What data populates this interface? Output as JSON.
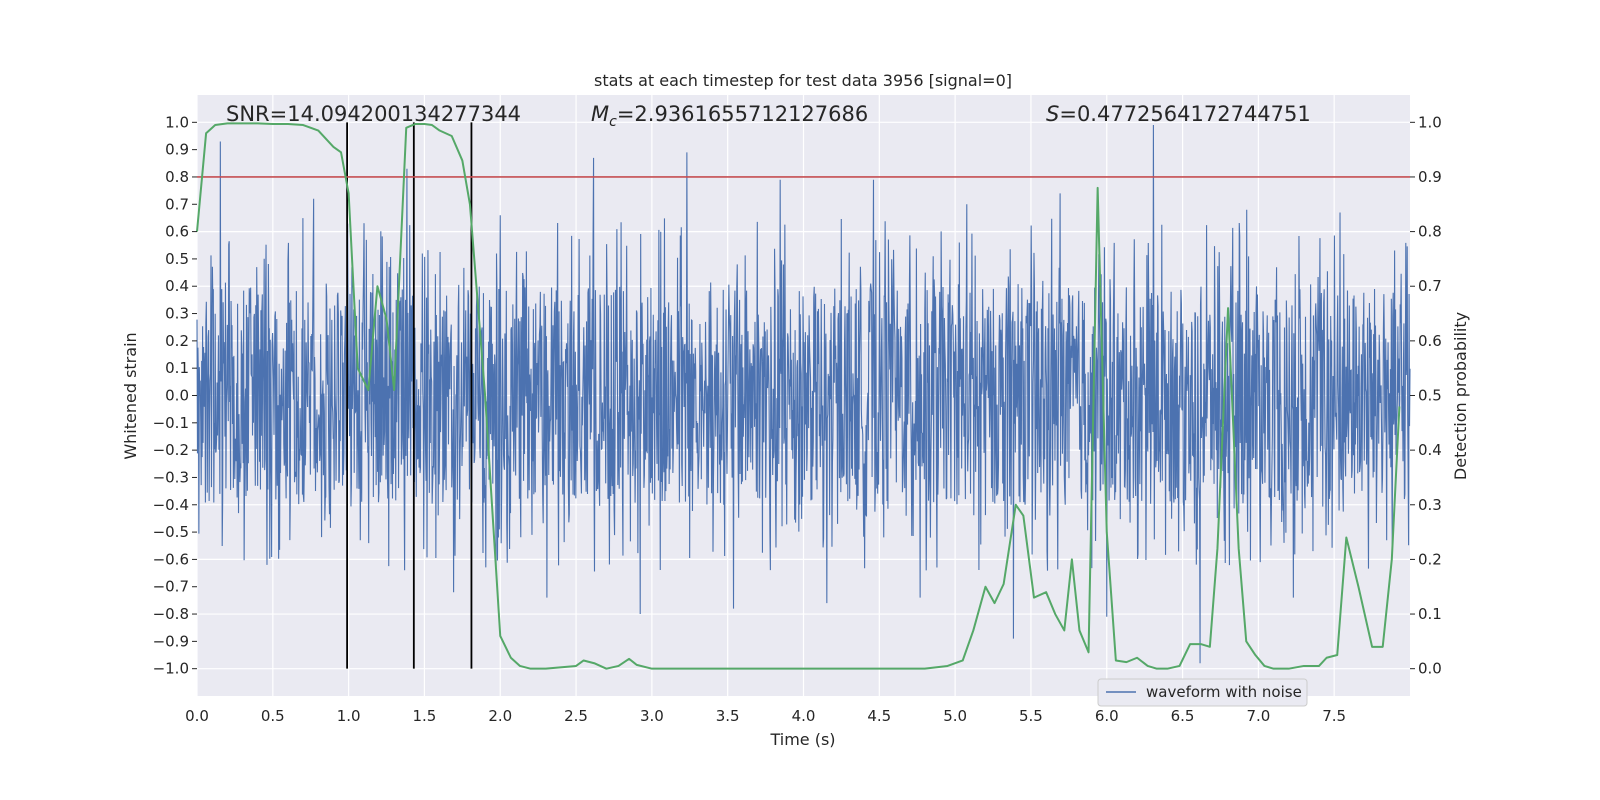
{
  "chart_data": {
    "type": "line",
    "title": "stats at each timestep for test data 3956 [signal=0]",
    "xlabel": "Time (s)",
    "ylabel_left": "Whitened strain",
    "ylabel_right": "Detection probability",
    "xlim": [
      0.0,
      8.0
    ],
    "ylim_left": [
      -1.1,
      1.1
    ],
    "ylim_right": [
      -0.05,
      1.05
    ],
    "x_ticks": [
      "0.0",
      "0.5",
      "1.0",
      "1.5",
      "2.0",
      "2.5",
      "3.0",
      "3.5",
      "4.0",
      "4.5",
      "5.0",
      "5.5",
      "6.0",
      "6.5",
      "7.0",
      "7.5"
    ],
    "y_ticks_left": [
      "1.0",
      "0.9",
      "0.8",
      "0.7",
      "0.6",
      "0.5",
      "0.4",
      "0.3",
      "0.2",
      "0.1",
      "0.0",
      "−0.1",
      "−0.2",
      "−0.3",
      "−0.4",
      "−0.5",
      "−0.6",
      "−0.7",
      "−0.8",
      "−0.9",
      "−1.0"
    ],
    "y_ticks_right": [
      "1.0",
      "0.9",
      "0.8",
      "0.7",
      "0.6",
      "0.5",
      "0.4",
      "0.3",
      "0.2",
      "0.1",
      "0.0"
    ],
    "grid": true,
    "legend_position": "lower-right",
    "annotations": {
      "snr_text": "SNR=14.094200134277344",
      "mc_symbol": "M",
      "mc_subscript": "c",
      "mc_value": "=2.9361655712127686",
      "s_symbol": "S",
      "s_value": "=0.4772564172744751"
    },
    "threshold": {
      "y": 0.9,
      "axis": "right",
      "color": "#c44e52"
    },
    "vertical_lines": [
      0.99,
      1.43,
      1.81
    ],
    "series": [
      {
        "name": "waveform with noise",
        "axis": "left",
        "kind": "noise",
        "color": "#4c72b0",
        "core_band": [
          -0.4,
          0.4
        ],
        "extremes": [
          0.93,
          -0.62,
          0.72,
          -0.53,
          0.83,
          -0.72,
          0.66,
          -0.74,
          0.87,
          -0.8,
          0.89,
          -0.78,
          0.79,
          -0.76,
          0.79,
          -0.74,
          0.7,
          -0.89,
          0.74,
          -0.81,
          0.99,
          -0.98,
          0.68,
          -0.74,
          0.67,
          -0.53
        ]
      },
      {
        "name": "",
        "axis": "right",
        "kind": "line",
        "color": "#55a868",
        "x": [
          0.0,
          0.06,
          0.12,
          0.2,
          0.3,
          0.4,
          0.5,
          0.6,
          0.7,
          0.8,
          0.9,
          0.95,
          1.0,
          1.06,
          1.13,
          1.19,
          1.25,
          1.3,
          1.38,
          1.44,
          1.5,
          1.55,
          1.6,
          1.68,
          1.75,
          1.8,
          1.9,
          2.0,
          2.07,
          2.13,
          2.2,
          2.3,
          2.5,
          2.55,
          2.62,
          2.7,
          2.78,
          2.85,
          2.9,
          3.0,
          3.1,
          3.3,
          4.0,
          4.45,
          4.55,
          4.8,
          4.95,
          5.05,
          5.12,
          5.2,
          5.26,
          5.32,
          5.4,
          5.45,
          5.52,
          5.6,
          5.66,
          5.72,
          5.77,
          5.82,
          5.88,
          5.94,
          6.0,
          6.06,
          6.13,
          6.2,
          6.27,
          6.33,
          6.4,
          6.48,
          6.55,
          6.62,
          6.68,
          6.73,
          6.8,
          6.87,
          6.92,
          6.98,
          7.04,
          7.1,
          7.2,
          7.3,
          7.4,
          7.45,
          7.52,
          7.58,
          7.66,
          7.75,
          7.82,
          7.88,
          7.93
        ],
        "y": [
          0.8,
          0.98,
          0.995,
          0.998,
          0.998,
          0.998,
          0.997,
          0.997,
          0.995,
          0.985,
          0.955,
          0.945,
          0.87,
          0.55,
          0.51,
          0.7,
          0.64,
          0.51,
          0.99,
          0.997,
          0.997,
          0.995,
          0.985,
          0.975,
          0.93,
          0.85,
          0.5,
          0.06,
          0.02,
          0.005,
          0.0,
          0.0,
          0.005,
          0.015,
          0.01,
          0.0,
          0.005,
          0.018,
          0.007,
          0.0,
          0.0,
          0.0,
          0.0,
          0.0,
          0.0,
          0.0,
          0.005,
          0.015,
          0.07,
          0.15,
          0.12,
          0.155,
          0.3,
          0.28,
          0.13,
          0.14,
          0.1,
          0.07,
          0.2,
          0.07,
          0.03,
          0.88,
          0.25,
          0.015,
          0.012,
          0.02,
          0.005,
          0.0,
          0.0,
          0.005,
          0.045,
          0.045,
          0.04,
          0.22,
          0.66,
          0.22,
          0.05,
          0.025,
          0.005,
          0.0,
          0.0,
          0.005,
          0.005,
          0.02,
          0.025,
          0.24,
          0.15,
          0.04,
          0.04,
          0.2,
          0.48
        ]
      }
    ]
  }
}
